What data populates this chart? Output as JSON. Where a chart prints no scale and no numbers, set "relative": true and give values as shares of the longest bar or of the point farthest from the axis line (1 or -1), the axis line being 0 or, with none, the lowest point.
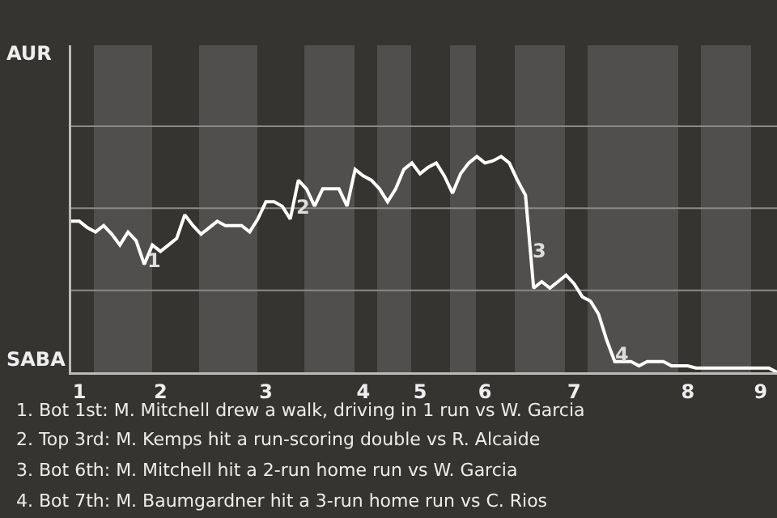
{
  "chart_data": {
    "type": "line",
    "color": "#ffffff",
    "marker": "none",
    "line_style": "solid",
    "relative": true,
    "categories": [
      null,
      "1",
      null,
      null,
      null,
      null,
      null,
      null,
      null,
      null,
      null,
      "2",
      null,
      null,
      null,
      null,
      null,
      null,
      null,
      null,
      null,
      null,
      null,
      null,
      "3",
      null,
      null,
      null,
      null,
      null,
      null,
      null,
      null,
      null,
      null,
      null,
      "4",
      null,
      null,
      null,
      null,
      null,
      null,
      "5",
      null,
      null,
      null,
      null,
      null,
      null,
      null,
      "6",
      null,
      null,
      null,
      null,
      null,
      null,
      null,
      null,
      null,
      null,
      "7",
      null,
      null,
      null,
      null,
      null,
      null,
      null,
      null,
      null,
      null,
      null,
      null,
      null,
      "8",
      null,
      null,
      null,
      null,
      null,
      null,
      null,
      null,
      "9",
      null,
      null
    ],
    "values": [
      0.7,
      0.7,
      0.67,
      0.65,
      0.68,
      0.64,
      0.59,
      0.65,
      0.61,
      0.5,
      0.59,
      0.56,
      0.59,
      0.62,
      0.73,
      0.68,
      0.64,
      0.67,
      0.7,
      0.68,
      0.68,
      0.68,
      0.65,
      0.71,
      0.79,
      0.79,
      0.77,
      0.71,
      0.89,
      0.85,
      0.77,
      0.85,
      0.85,
      0.85,
      0.77,
      0.94,
      0.91,
      0.89,
      0.85,
      0.79,
      0.85,
      0.94,
      0.97,
      0.92,
      0.95,
      0.97,
      0.91,
      0.83,
      0.92,
      0.97,
      1,
      0.97,
      0.98,
      1,
      0.97,
      0.89,
      0.82,
      0.39,
      0.42,
      0.39,
      0.42,
      0.45,
      0.41,
      0.35,
      0.33,
      0.27,
      0.15,
      0.05,
      0.05,
      0.05,
      0.03,
      0.05,
      0.05,
      0.05,
      0.03,
      0.03,
      0.03,
      0.02,
      0.02,
      0.02,
      0.02,
      0.02,
      0.02,
      0.02,
      0.02,
      0.02,
      0.02,
      0
    ],
    "ref_lines": [
      {
        "axis": "y",
        "value": 0.38,
        "color": "#8a8a8a"
      },
      {
        "axis": "y",
        "value": 0.76,
        "color": "#8a8a8a"
      },
      {
        "axis": "y",
        "value": 1.14,
        "color": "#8a8a8a"
      }
    ],
    "annotations": [
      "AUR",
      "SABA",
      "1",
      "2",
      "3",
      "4",
      "1. Bot 1st: M. Mitchell drew a walk, driving in 1 run vs W. Garcia",
      "2. Top 3rd: M. Kemps hit a run-scoring double vs R. Alcaide",
      "3. Bot 6th: M. Mitchell hit a 2-run home run vs W. Garcia",
      "4. Bot 7th: M. Baumgardner hit a 3-run home run vs C. Rios"
    ]
  }
}
